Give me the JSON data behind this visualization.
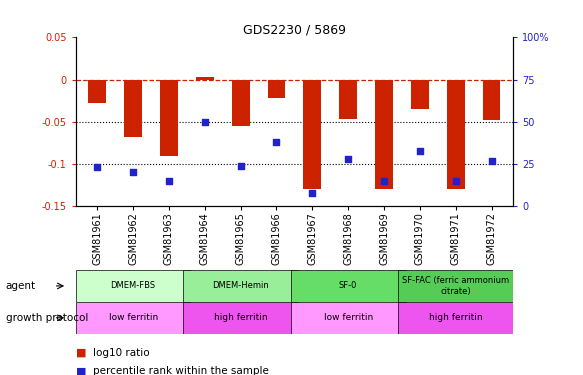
{
  "title": "GDS2230 / 5869",
  "samples": [
    "GSM81961",
    "GSM81962",
    "GSM81963",
    "GSM81964",
    "GSM81965",
    "GSM81966",
    "GSM81967",
    "GSM81968",
    "GSM81969",
    "GSM81970",
    "GSM81971",
    "GSM81972"
  ],
  "log10_ratio": [
    -0.028,
    -0.068,
    -0.09,
    0.003,
    -0.055,
    -0.022,
    -0.13,
    -0.047,
    -0.13,
    -0.035,
    -0.13,
    -0.048
  ],
  "percentile_rank": [
    23,
    20,
    15,
    50,
    24,
    38,
    8,
    28,
    15,
    33,
    15,
    27
  ],
  "ylim_left": [
    -0.15,
    0.05
  ],
  "ylim_right": [
    0,
    100
  ],
  "dotted_lines": [
    -0.05,
    -0.1
  ],
  "left_ticks": [
    -0.15,
    -0.1,
    -0.05,
    0.0,
    0.05
  ],
  "left_tick_labels": [
    "-0.15",
    "-0.1",
    "-0.05",
    "0",
    "0.05"
  ],
  "right_ticks": [
    0,
    25,
    50,
    75,
    100
  ],
  "right_tick_labels": [
    "0",
    "25",
    "50",
    "75",
    "100%"
  ],
  "agent_groups": [
    {
      "label": "DMEM-FBS",
      "start": 0,
      "end": 3,
      "color": "#ccffcc"
    },
    {
      "label": "DMEM-Hemin",
      "start": 3,
      "end": 6,
      "color": "#99ee99"
    },
    {
      "label": "SF-0",
      "start": 6,
      "end": 9,
      "color": "#66dd66"
    },
    {
      "label": "SF-FAC (ferric ammonium\ncitrate)",
      "start": 9,
      "end": 12,
      "color": "#55cc55"
    }
  ],
  "growth_groups": [
    {
      "label": "low ferritin",
      "start": 0,
      "end": 3,
      "color": "#ff99ff"
    },
    {
      "label": "high ferritin",
      "start": 3,
      "end": 6,
      "color": "#ee55ee"
    },
    {
      "label": "low ferritin",
      "start": 6,
      "end": 9,
      "color": "#ff99ff"
    },
    {
      "label": "high ferritin",
      "start": 9,
      "end": 12,
      "color": "#ee55ee"
    }
  ],
  "bar_color": "#cc2200",
  "dot_color": "#2222cc",
  "legend_red_label": "log10 ratio",
  "legend_blue_label": "percentile rank within the sample",
  "tick_fontsize": 7,
  "label_fontsize": 7.5
}
